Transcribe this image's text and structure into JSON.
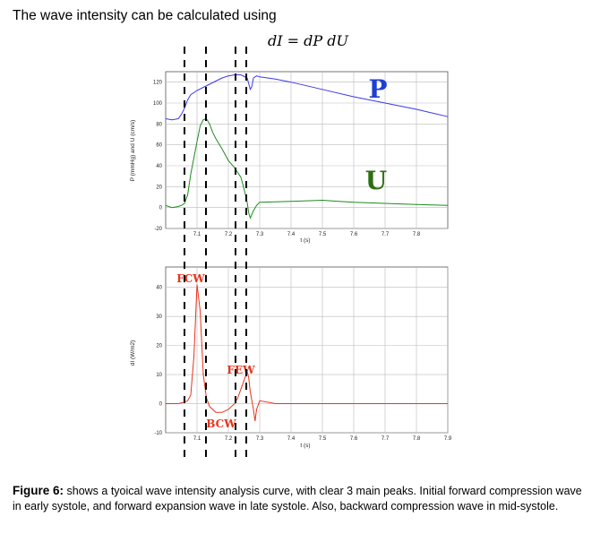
{
  "intro_text": "The wave intensity can be calculated using",
  "formula": "dI = dP dU",
  "caption": {
    "lead": "Figure 6:",
    "text": " shows a tyoical wave intensity analysis curve, with clear 3 main peaks. Initial forward compression wave in early systole, and forward expansion wave in late systole. Also, backward compression wave in mid-systole."
  },
  "colors": {
    "pressure": "#3a3ae6",
    "velocity": "#1e8a1e",
    "intensity": "#e8341c",
    "label_p": "#1f3fd1",
    "label_u": "#2e6e12"
  },
  "chart_data": [
    {
      "type": "line",
      "xlabel": "t (s)",
      "ylabel": "P (mmHg) and U (cm/s)",
      "xlim": [
        7.0,
        7.9
      ],
      "ylim": [
        -20,
        130
      ],
      "x_ticks": [
        7.1,
        7.2,
        7.3,
        7.4,
        7.5,
        7.6,
        7.7,
        7.8
      ],
      "y_ticks": [
        -20,
        0,
        20,
        40,
        60,
        80,
        100,
        120
      ],
      "grid": true,
      "series": [
        {
          "name": "P",
          "x": [
            7.0,
            7.02,
            7.04,
            7.05,
            7.06,
            7.07,
            7.08,
            7.1,
            7.12,
            7.14,
            7.16,
            7.18,
            7.2,
            7.22,
            7.24,
            7.26,
            7.27,
            7.275,
            7.28,
            7.29,
            7.3,
            7.35,
            7.4,
            7.5,
            7.6,
            7.7,
            7.8,
            7.9
          ],
          "y": [
            85,
            84,
            85,
            89,
            95,
            103,
            108,
            112,
            115,
            118,
            121,
            124,
            126,
            127,
            127,
            124,
            113,
            116,
            124,
            126,
            125,
            123,
            120,
            113,
            106,
            100,
            94,
            87
          ]
        },
        {
          "name": "U",
          "x": [
            7.0,
            7.02,
            7.04,
            7.05,
            7.06,
            7.07,
            7.08,
            7.1,
            7.11,
            7.12,
            7.13,
            7.14,
            7.15,
            7.16,
            7.18,
            7.2,
            7.22,
            7.24,
            7.25,
            7.26,
            7.265,
            7.27,
            7.28,
            7.29,
            7.3,
            7.4,
            7.5,
            7.6,
            7.7,
            7.8,
            7.9
          ],
          "y": [
            2,
            0,
            1,
            2,
            4,
            12,
            32,
            63,
            78,
            84,
            85,
            80,
            72,
            66,
            56,
            45,
            38,
            29,
            18,
            5,
            -5,
            -10,
            -3,
            2,
            5,
            6,
            7,
            5,
            4,
            3,
            2
          ]
        }
      ]
    },
    {
      "type": "line",
      "xlabel": "t (s)",
      "ylabel": "dI (W/m2)",
      "xlim": [
        7.0,
        7.9
      ],
      "ylim": [
        -10,
        47
      ],
      "x_ticks": [
        7.1,
        7.2,
        7.3,
        7.4,
        7.5,
        7.6,
        7.7,
        7.8,
        7.9
      ],
      "y_ticks": [
        -10,
        0,
        10,
        20,
        30,
        40
      ],
      "grid": true,
      "annotations": [
        "FCW",
        "FEW",
        "BCW"
      ],
      "series": [
        {
          "name": "dI",
          "x": [
            7.0,
            7.02,
            7.04,
            7.06,
            7.07,
            7.08,
            7.09,
            7.1,
            7.11,
            7.12,
            7.13,
            7.14,
            7.16,
            7.18,
            7.2,
            7.22,
            7.23,
            7.24,
            7.25,
            7.26,
            7.265,
            7.27,
            7.28,
            7.285,
            7.29,
            7.3,
            7.35,
            7.4,
            7.5,
            7.6,
            7.7,
            7.8,
            7.9
          ],
          "y": [
            0,
            0,
            0,
            0.5,
            1,
            3,
            16,
            41,
            32,
            10,
            2,
            -1,
            -3,
            -3,
            -2,
            0,
            2,
            5,
            8,
            11,
            9,
            4,
            -2,
            -6,
            -2,
            1,
            0,
            0,
            0,
            0,
            0,
            0,
            0
          ]
        }
      ]
    }
  ]
}
